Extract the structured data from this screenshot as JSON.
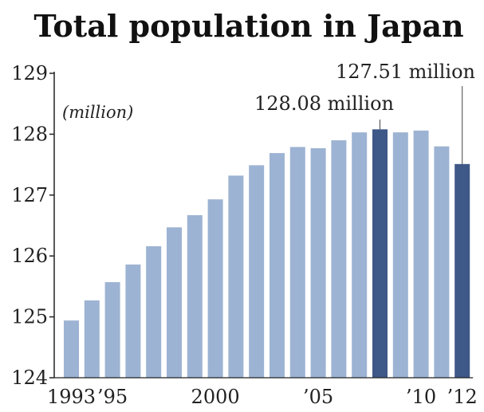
{
  "chart_data": {
    "type": "bar",
    "title": "Total population in Japan",
    "unit_label": "(million)",
    "categories": [
      "1993",
      "1994",
      "1995",
      "1996",
      "1997",
      "1998",
      "1999",
      "2000",
      "2001",
      "2002",
      "2003",
      "2004",
      "2005",
      "2006",
      "2007",
      "2008",
      "2009",
      "2010",
      "2011",
      "2012"
    ],
    "values": [
      124.94,
      125.27,
      125.57,
      125.86,
      126.16,
      126.47,
      126.67,
      126.93,
      127.32,
      127.49,
      127.69,
      127.79,
      127.77,
      127.9,
      128.03,
      128.08,
      128.03,
      128.06,
      127.8,
      127.51
    ],
    "ylim": [
      124,
      129
    ],
    "yticks": [
      "124",
      "125",
      "126",
      "127",
      "128",
      "129"
    ],
    "xtick_labels": [
      {
        "category": "1993",
        "label": "1993"
      },
      {
        "category": "1995",
        "label": "’95"
      },
      {
        "category": "2000",
        "label": "2000"
      },
      {
        "category": "2005",
        "label": "’05"
      },
      {
        "category": "2010",
        "label": "’10"
      },
      {
        "category": "2012",
        "label": "’12"
      }
    ],
    "highlight": [
      "2008",
      "2012"
    ],
    "annotations": [
      {
        "category": "2008",
        "text": "128.08 million"
      },
      {
        "category": "2012",
        "text": "127.51 million"
      }
    ],
    "colors": {
      "bar": "#9db3d3",
      "highlight": "#3e5887",
      "axis": "#222222"
    },
    "grid": false,
    "legend": "none"
  }
}
